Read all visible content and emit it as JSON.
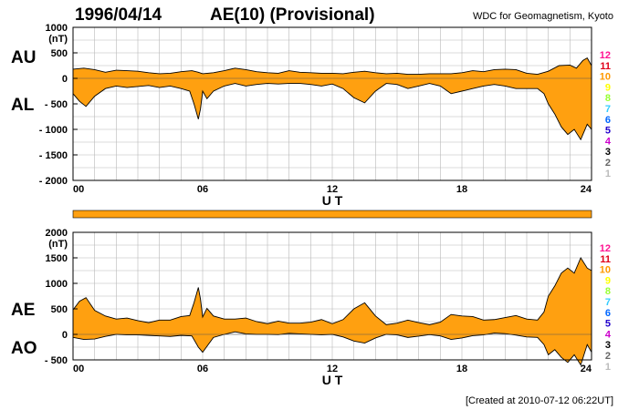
{
  "header": {
    "date": "1996/04/14",
    "title": "AE(10) (Provisional)",
    "source": "WDC for Geomagnetism, Kyoto"
  },
  "footer": {
    "created": "[Created at 2010-07-12 06:22UT]"
  },
  "colors": {
    "fill": "#ffa010",
    "stroke": "#000000",
    "grid": "#b8b8b8",
    "bar": "#ffa010"
  },
  "station_counts": [
    {
      "label": "12",
      "color": "#ff1493"
    },
    {
      "label": "11",
      "color": "#e0001a"
    },
    {
      "label": "10",
      "color": "#ff9900"
    },
    {
      "label": "9",
      "color": "#ffff00"
    },
    {
      "label": "8",
      "color": "#99ff33"
    },
    {
      "label": "7",
      "color": "#33ccff"
    },
    {
      "label": "6",
      "color": "#0066ff"
    },
    {
      "label": "5",
      "color": "#2200cc"
    },
    {
      "label": "4",
      "color": "#cc00cc"
    },
    {
      "label": "3",
      "color": "#000000"
    },
    {
      "label": "2",
      "color": "#666666"
    },
    {
      "label": "1",
      "color": "#bbbbbb"
    }
  ],
  "chart_data": [
    {
      "type": "area",
      "xlabel": "U T",
      "unit": "(nT)",
      "upper_label": "AU",
      "lower_label": "AL",
      "x_ticks": [
        "00",
        "06",
        "12",
        "18",
        "24"
      ],
      "xlim": [
        0,
        24
      ],
      "ylim": [
        -2000,
        1000
      ],
      "y_ticks": [
        {
          "v": 1000,
          "label": "1000"
        },
        {
          "v": 500,
          "label": "500"
        },
        {
          "v": 0,
          "label": "0"
        },
        {
          "v": -500,
          "label": "- 500"
        },
        {
          "v": -1000,
          "label": "- 1000"
        },
        {
          "v": -1500,
          "label": "- 1500"
        },
        {
          "v": -2000,
          "label": "- 2000"
        }
      ],
      "series": [
        {
          "name": "AU",
          "x": [
            0,
            0.5,
            1,
            1.5,
            2,
            2.5,
            3,
            3.5,
            4,
            4.5,
            5,
            5.5,
            5.8,
            6,
            6.5,
            7,
            7.5,
            8,
            8.5,
            9,
            9.5,
            10,
            10.5,
            11,
            11.5,
            12,
            12.5,
            13,
            13.5,
            14,
            14.5,
            15,
            15.5,
            16,
            16.5,
            17,
            17.5,
            18,
            18.5,
            19,
            19.5,
            20,
            20.5,
            21,
            21.5,
            22,
            22.5,
            23,
            23.3,
            23.6,
            23.8,
            24
          ],
          "values": [
            180,
            200,
            170,
            120,
            160,
            150,
            140,
            110,
            90,
            100,
            130,
            150,
            120,
            90,
            110,
            150,
            200,
            170,
            130,
            110,
            100,
            150,
            120,
            110,
            100,
            100,
            90,
            120,
            140,
            110,
            90,
            100,
            80,
            80,
            90,
            90,
            90,
            110,
            150,
            130,
            170,
            180,
            170,
            100,
            80,
            140,
            250,
            260,
            200,
            350,
            400,
            250
          ]
        },
        {
          "name": "AL",
          "x": [
            0,
            0.3,
            0.6,
            1,
            1.5,
            2,
            2.5,
            3,
            3.5,
            4,
            4.5,
            5,
            5.4,
            5.6,
            5.8,
            5.9,
            6,
            6.2,
            6.5,
            7,
            7.5,
            8,
            8.5,
            9,
            9.5,
            10,
            10.5,
            11,
            11.5,
            12,
            12.5,
            13,
            13.5,
            14,
            14.5,
            15,
            15.5,
            16,
            16.5,
            17,
            17.5,
            18,
            18.5,
            19,
            19.5,
            20,
            20.5,
            21,
            21.5,
            21.8,
            22,
            22.3,
            22.6,
            22.9,
            23.2,
            23.5,
            23.8,
            24
          ],
          "values": [
            -300,
            -450,
            -550,
            -350,
            -200,
            -150,
            -180,
            -160,
            -140,
            -180,
            -150,
            -200,
            -250,
            -500,
            -800,
            -600,
            -250,
            -400,
            -250,
            -150,
            -100,
            -150,
            -120,
            -100,
            -110,
            -100,
            -100,
            -120,
            -150,
            -110,
            -200,
            -380,
            -480,
            -250,
            -100,
            -120,
            -200,
            -150,
            -100,
            -150,
            -300,
            -250,
            -200,
            -150,
            -120,
            -150,
            -200,
            -200,
            -200,
            -300,
            -500,
            -700,
            -950,
            -1100,
            -1000,
            -1200,
            -900,
            -1000
          ]
        }
      ]
    },
    {
      "type": "area",
      "xlabel": "U T",
      "unit": "(nT)",
      "upper_label": "AE",
      "lower_label": "AO",
      "x_ticks": [
        "00",
        "06",
        "12",
        "18",
        "24"
      ],
      "xlim": [
        0,
        24
      ],
      "ylim": [
        -500,
        2000
      ],
      "y_ticks": [
        {
          "v": 2000,
          "label": "2000"
        },
        {
          "v": 1500,
          "label": "1500"
        },
        {
          "v": 1000,
          "label": "1000"
        },
        {
          "v": 500,
          "label": "500"
        },
        {
          "v": 0,
          "label": "0"
        },
        {
          "v": -500,
          "label": "- 500"
        }
      ],
      "series": [
        {
          "name": "AE",
          "x": [
            0,
            0.3,
            0.6,
            1,
            1.5,
            2,
            2.5,
            3,
            3.5,
            4,
            4.5,
            5,
            5.4,
            5.6,
            5.8,
            5.9,
            6,
            6.2,
            6.5,
            7,
            7.5,
            8,
            8.5,
            9,
            9.5,
            10,
            10.5,
            11,
            11.5,
            12,
            12.5,
            13,
            13.5,
            14,
            14.5,
            15,
            15.5,
            16,
            16.5,
            17,
            17.5,
            18,
            18.5,
            19,
            19.5,
            20,
            20.5,
            21,
            21.5,
            21.8,
            22,
            22.3,
            22.6,
            22.9,
            23.2,
            23.5,
            23.8,
            24
          ],
          "values": [
            480,
            650,
            720,
            470,
            360,
            300,
            320,
            270,
            230,
            280,
            280,
            350,
            370,
            620,
            920,
            690,
            340,
            510,
            360,
            300,
            300,
            320,
            250,
            210,
            260,
            220,
            220,
            240,
            290,
            210,
            290,
            500,
            620,
            360,
            190,
            220,
            280,
            230,
            190,
            240,
            390,
            360,
            350,
            280,
            290,
            330,
            370,
            300,
            280,
            440,
            750,
            950,
            1200,
            1300,
            1200,
            1500,
            1300,
            1250
          ]
        },
        {
          "name": "AO",
          "x": [
            0,
            0.5,
            1,
            1.5,
            2,
            2.5,
            3,
            3.5,
            4,
            4.5,
            5,
            5.5,
            5.8,
            6,
            6.5,
            7,
            7.5,
            8,
            8.5,
            9,
            9.5,
            10,
            10.5,
            11,
            11.5,
            12,
            12.5,
            13,
            13.5,
            14,
            14.5,
            15,
            15.5,
            16,
            16.5,
            17,
            17.5,
            18,
            18.5,
            19,
            19.5,
            20,
            20.5,
            21,
            21.5,
            21.8,
            22,
            22.3,
            22.6,
            22.9,
            23.2,
            23.5,
            23.8,
            24
          ],
          "values": [
            -60,
            -100,
            -90,
            -40,
            0,
            -10,
            -10,
            -20,
            -30,
            -40,
            -20,
            -30,
            -250,
            -350,
            -60,
            0,
            50,
            10,
            0,
            0,
            -5,
            20,
            10,
            0,
            -10,
            0,
            -50,
            -130,
            -170,
            -70,
            0,
            -10,
            -60,
            -35,
            -5,
            -30,
            -100,
            -70,
            -25,
            -10,
            25,
            15,
            -15,
            -50,
            -60,
            -200,
            -400,
            -300,
            -450,
            -550,
            -400,
            -600,
            -200,
            -350
          ]
        }
      ]
    }
  ]
}
